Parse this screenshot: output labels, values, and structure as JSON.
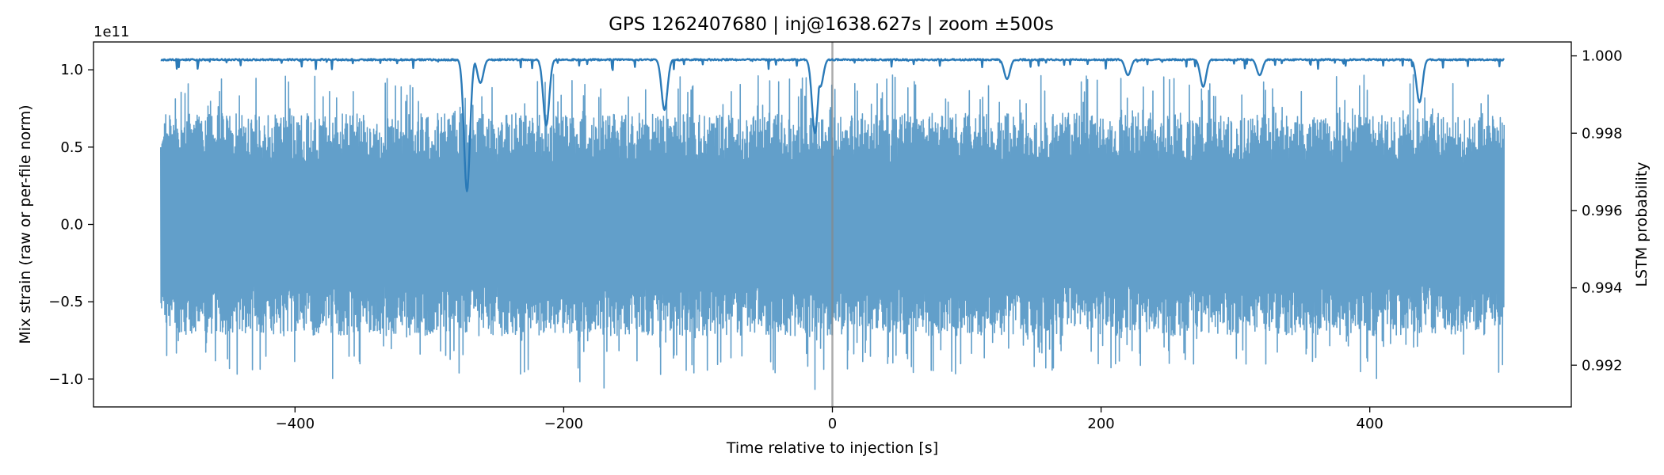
{
  "chart_data": {
    "type": "line",
    "title": "GPS 1262407680 | inj@1638.627s | zoom ±500s",
    "xlabel": "Time relative to injection [s]",
    "ylabel_left": "Mix strain (raw or per-file norm)",
    "ylabel_right": "LSTM probability",
    "offset_text": "1e11",
    "xlim": [
      -550,
      550
    ],
    "ylim_left": [
      -1.18,
      1.18
    ],
    "ylim_right": [
      0.99092,
      1.00036
    ],
    "x_ticks": [
      -400,
      -200,
      0,
      200,
      400
    ],
    "x_tick_labels": [
      "−400",
      "−200",
      "0",
      "200",
      "400"
    ],
    "left_ticks": [
      1.0,
      0.5,
      0.0,
      -0.5,
      -1.0
    ],
    "left_tick_labels": [
      "1.0",
      "0.5",
      "0.0",
      "−0.5",
      "−1.0"
    ],
    "right_ticks": [
      1.0,
      0.998,
      0.996,
      0.994,
      0.992
    ],
    "right_tick_labels": [
      "1.000",
      "0.998",
      "0.996",
      "0.994",
      "0.992"
    ],
    "injection_time": 0,
    "series": [
      {
        "name": "Mix strain",
        "axis": "left",
        "color": "#629fca",
        "x_range": [
          -500,
          500
        ],
        "typical_amplitude": 0.72,
        "peak_min": -1.07,
        "peak_max": 0.98
      },
      {
        "name": "LSTM probability",
        "axis": "right",
        "color": "#2a7ab8",
        "x_range": [
          -500,
          500
        ],
        "baseline": 0.99992,
        "dips": [
          {
            "x": -272,
            "value": 0.9965
          },
          {
            "x": -262,
            "value": 0.9993
          },
          {
            "x": -213,
            "value": 0.9982
          },
          {
            "x": -125,
            "value": 0.9986
          },
          {
            "x": -13,
            "value": 0.998
          },
          {
            "x": -9,
            "value": 0.9992
          },
          {
            "x": 130,
            "value": 0.9994
          },
          {
            "x": 220,
            "value": 0.9995
          },
          {
            "x": 276,
            "value": 0.9992
          },
          {
            "x": 318,
            "value": 0.9995
          },
          {
            "x": 437,
            "value": 0.9988
          }
        ]
      }
    ]
  }
}
